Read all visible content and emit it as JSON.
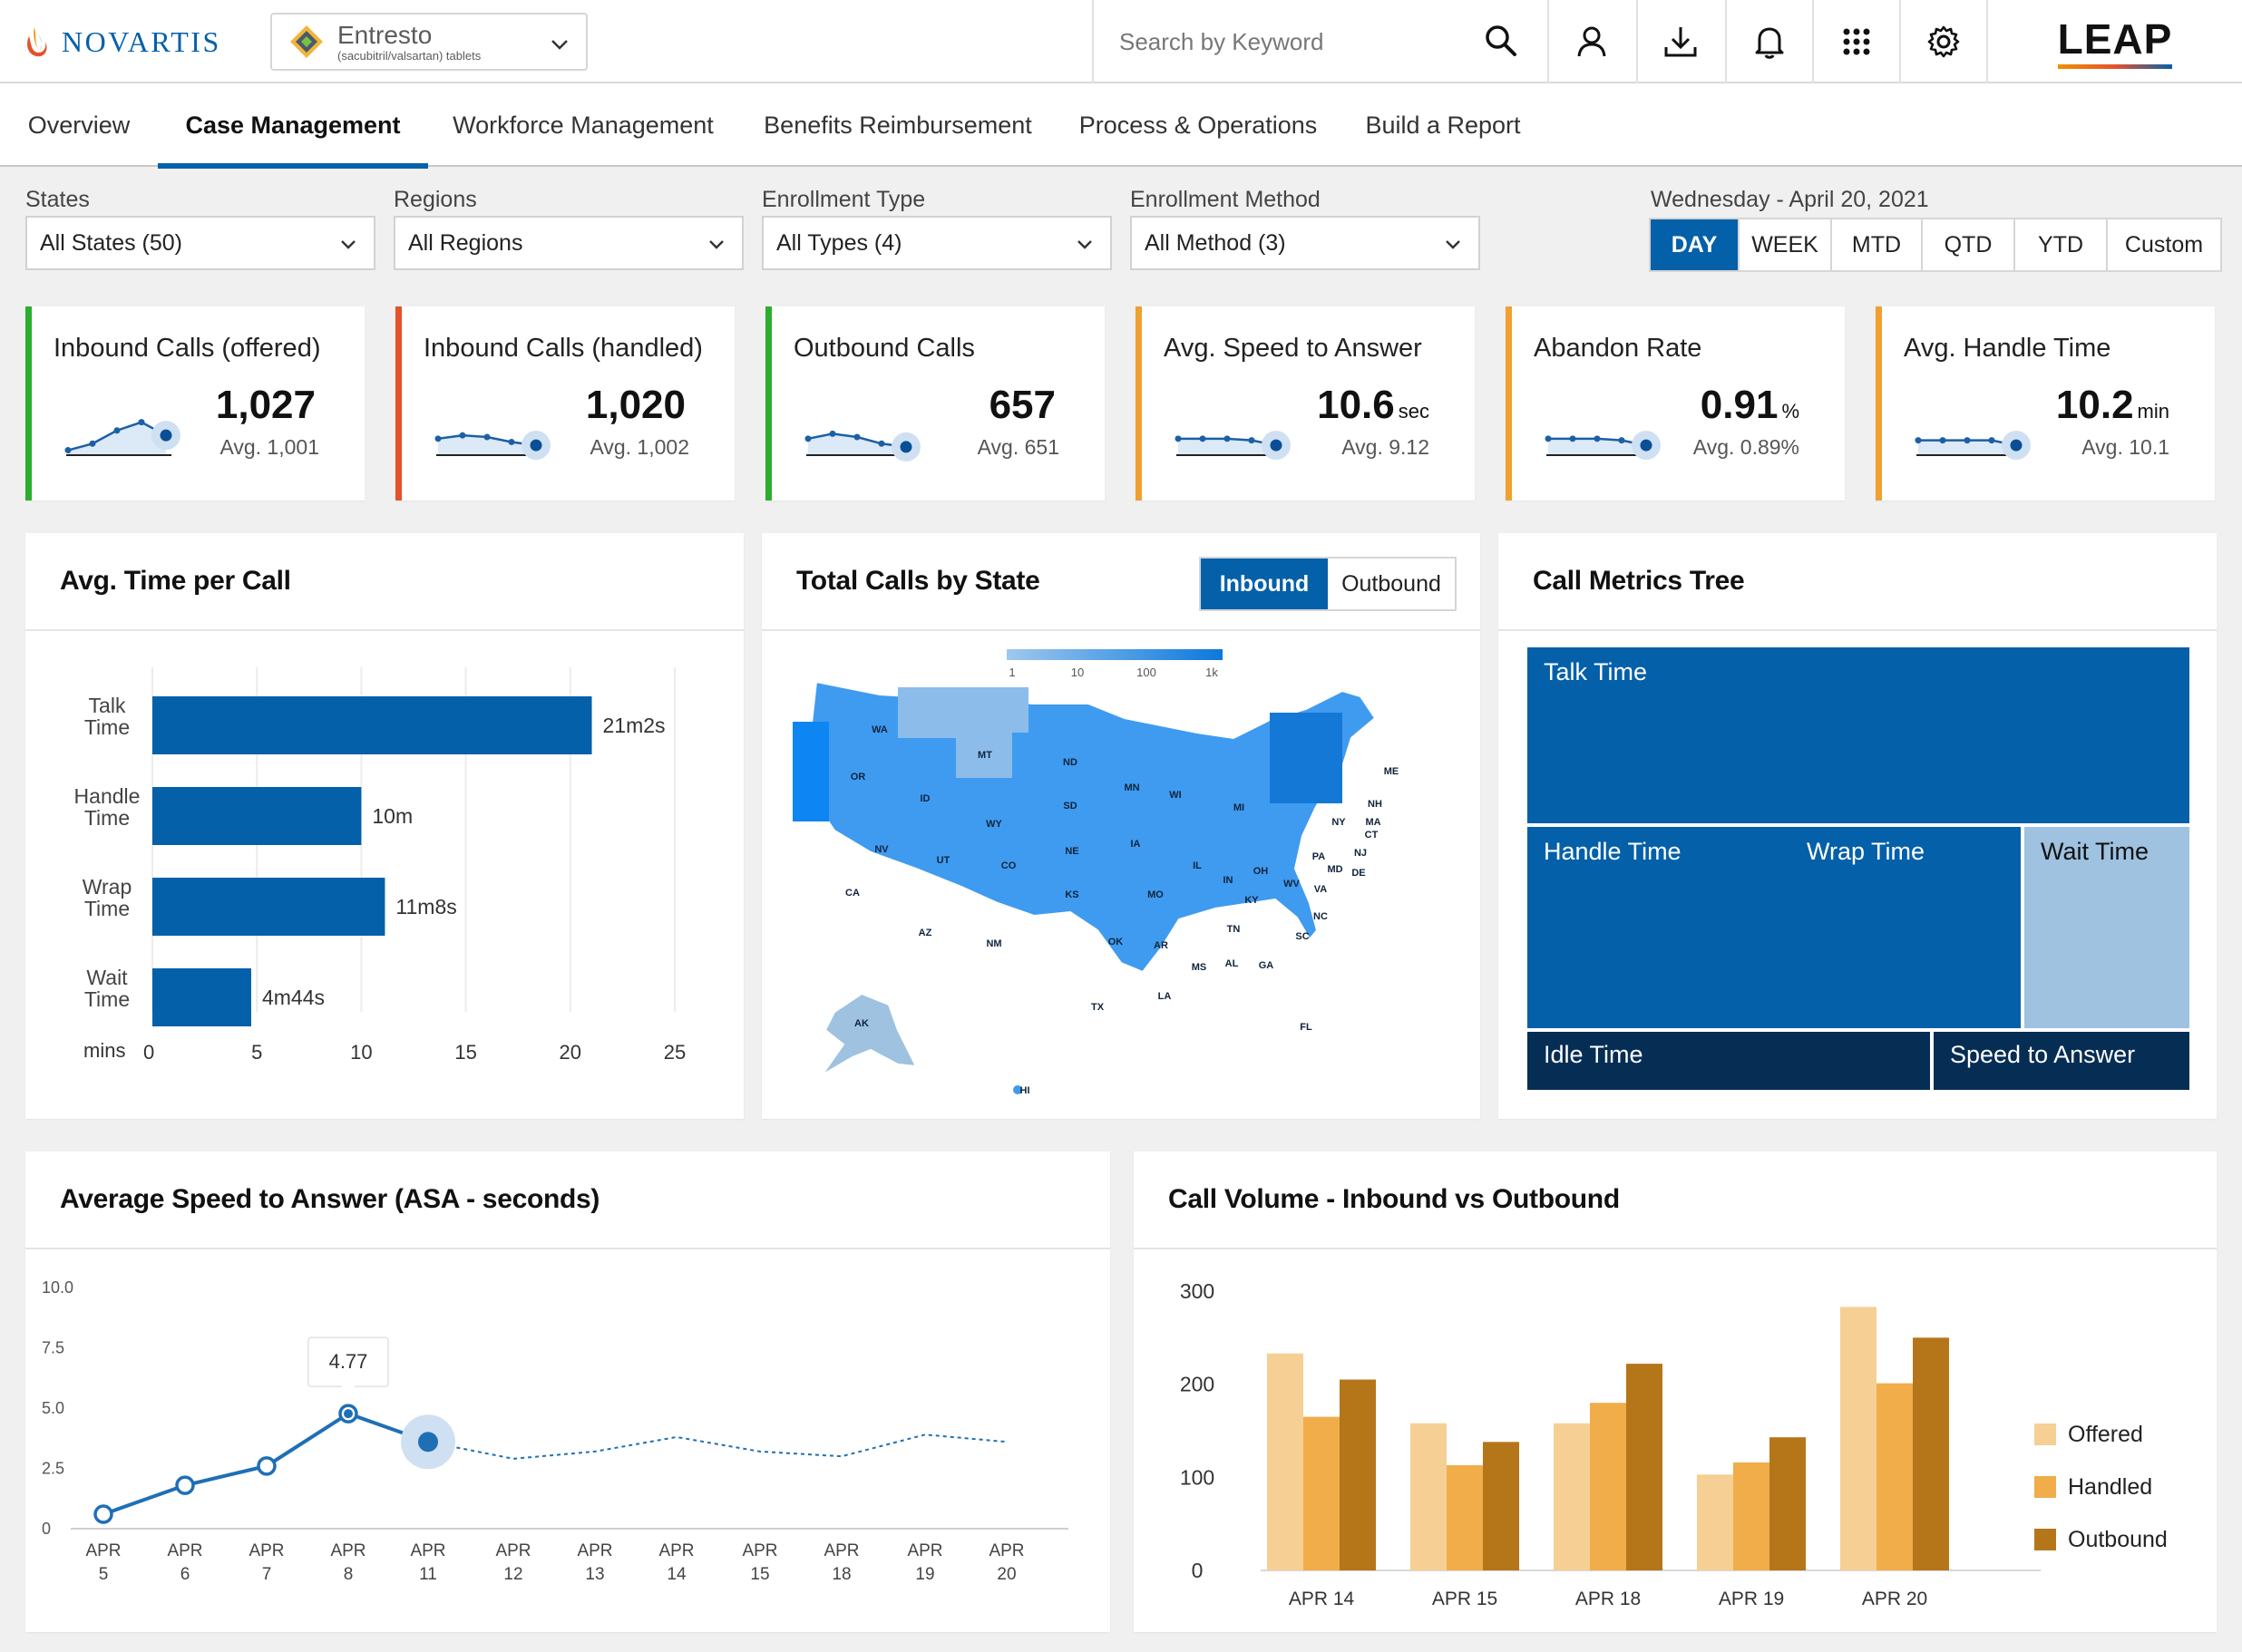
{
  "header": {
    "brand": "NOVARTIS",
    "product_name": "Entresto",
    "product_sub": "(sacubitril/valsartan) tablets",
    "search_placeholder": "Search by Keyword",
    "logo": "LEAP"
  },
  "nav": {
    "tabs": [
      {
        "label": "Overview"
      },
      {
        "label": "Case Management"
      },
      {
        "label": "Workforce Management"
      },
      {
        "label": "Benefits Reimbursement"
      },
      {
        "label": "Process & Operations"
      },
      {
        "label": "Build a Report"
      }
    ],
    "active_index": 1
  },
  "filters": [
    {
      "label": "States",
      "value": "All States (50)"
    },
    {
      "label": "Regions",
      "value": "All Regions"
    },
    {
      "label": "Enrollment Type",
      "value": "All Types (4)"
    },
    {
      "label": "Enrollment Method",
      "value": "All Method (3)"
    }
  ],
  "date": {
    "label": "Wednesday - April 20, 2021",
    "periods": [
      "DAY",
      "WEEK",
      "MTD",
      "QTD",
      "YTD",
      "Custom"
    ],
    "active": "DAY"
  },
  "kpis": [
    {
      "title": "Inbound Calls (offered)",
      "value": "1,027",
      "unit": "",
      "avg": "Avg.  1,001",
      "color": "#2bae2e",
      "spark": [
        3,
        7,
        15,
        20,
        12
      ]
    },
    {
      "title": "Inbound Calls (handled)",
      "value": "1,020",
      "unit": "",
      "avg": "Avg. 1,002",
      "color": "#e6512c",
      "spark": [
        10,
        12,
        11,
        8,
        6
      ]
    },
    {
      "title": "Outbound Calls",
      "value": "657",
      "unit": "",
      "avg": "Avg. 651",
      "color": "#2bae2e",
      "spark": [
        10,
        13,
        11,
        7,
        5
      ]
    },
    {
      "title": "Avg. Speed to Answer",
      "value": "10.6",
      "unit": "sec",
      "avg": "Avg. 9.12",
      "color": "#f0a030",
      "spark": [
        10,
        10,
        10,
        9,
        6
      ]
    },
    {
      "title": "Abandon Rate",
      "value": "0.91",
      "unit": "%",
      "avg": "Avg. 0.89%",
      "color": "#f0a030",
      "spark": [
        10,
        10,
        10,
        9,
        6
      ]
    },
    {
      "title": "Avg. Handle Time",
      "value": "10.2",
      "unit": "min",
      "avg": "Avg. 10.1",
      "color": "#f0a030",
      "spark": [
        9,
        9,
        9,
        9,
        6
      ]
    }
  ],
  "panels": {
    "avg_time": "Avg. Time per Call",
    "map": "Total Calls by State",
    "tree": "Call Metrics Tree",
    "asa": "Average Speed to Answer (ASA - seconds)",
    "volume": "Call Volume - Inbound vs Outbound"
  },
  "map_toggle": [
    "Inbound",
    "Outbound"
  ],
  "map_legend": [
    "1",
    "10",
    "100",
    "1k"
  ],
  "map_states": [
    "WA",
    "OR",
    "CA",
    "NV",
    "ID",
    "MT",
    "WY",
    "UT",
    "AZ",
    "CO",
    "NM",
    "ND",
    "SD",
    "NE",
    "KS",
    "OK",
    "TX",
    "MN",
    "IA",
    "MO",
    "AR",
    "LA",
    "WI",
    "IL",
    "MI",
    "IN",
    "OH",
    "KY",
    "TN",
    "MS",
    "AL",
    "GA",
    "FL",
    "SC",
    "NC",
    "VA",
    "WV",
    "PA",
    "NY",
    "MD",
    "DE",
    "NJ",
    "CT",
    "MA",
    "NH",
    "ME",
    "AK",
    "HI"
  ],
  "tree": {
    "cells": [
      "Talk Time",
      "Handle Time",
      "Wrap Time",
      "Wait Time",
      "Idle Time",
      "Speed to Answer"
    ],
    "colors": {
      "dark": "#0460a9",
      "light": "#9ec2e0",
      "navy": "#062d54"
    }
  },
  "chart_data": [
    {
      "type": "bar",
      "orientation": "horizontal",
      "title": "Avg. Time per Call",
      "categories": [
        "Talk Time",
        "Handle Time",
        "Wrap Time",
        "Wait Time"
      ],
      "values": [
        21.03,
        10,
        11.13,
        4.73
      ],
      "data_labels": [
        "21m2s",
        "10m",
        "11m8s",
        "4m44s"
      ],
      "xlabel": "mins",
      "xlim": [
        0,
        25
      ],
      "xticks": [
        0,
        5,
        10,
        15,
        20,
        25
      ],
      "color": "#0460a9",
      "grid": true
    },
    {
      "type": "line",
      "title": "Average Speed to Answer (ASA - seconds)",
      "categories": [
        "APR 5",
        "APR 6",
        "APR 7",
        "APR 8",
        "APR 11",
        "APR 12",
        "APR 13",
        "APR 14",
        "APR 15",
        "APR 18",
        "APR 19",
        "APR 20"
      ],
      "values": [
        0.6,
        1.8,
        2.6,
        4.77,
        3.6,
        2.9,
        3.2,
        3.8,
        3.2,
        3.0,
        3.9,
        3.6
      ],
      "solid_through_index": 4,
      "highlight_index": 4,
      "tooltip_index": 3,
      "tooltip": "4.77",
      "ylim": [
        0,
        10
      ],
      "yticks": [
        "0",
        "2.5",
        "5.0",
        "7.5",
        "10.0"
      ],
      "color": "#1f6fb5"
    },
    {
      "type": "bar",
      "title": "Call Volume - Inbound vs Outbound",
      "categories": [
        "APR 14",
        "APR 15",
        "APR 18",
        "APR 19",
        "APR 20"
      ],
      "series": [
        {
          "name": "Offered",
          "values": [
            233,
            158,
            158,
            103,
            283
          ],
          "color": "#f6cf95"
        },
        {
          "name": "Handled",
          "values": [
            165,
            113,
            180,
            116,
            201
          ],
          "color": "#f0ad4a"
        },
        {
          "name": "Outbound",
          "values": [
            205,
            138,
            222,
            143,
            250
          ],
          "color": "#b5761a"
        }
      ],
      "ylim": [
        0,
        300
      ],
      "yticks": [
        0,
        100,
        200,
        300
      ],
      "legend": "right"
    }
  ]
}
